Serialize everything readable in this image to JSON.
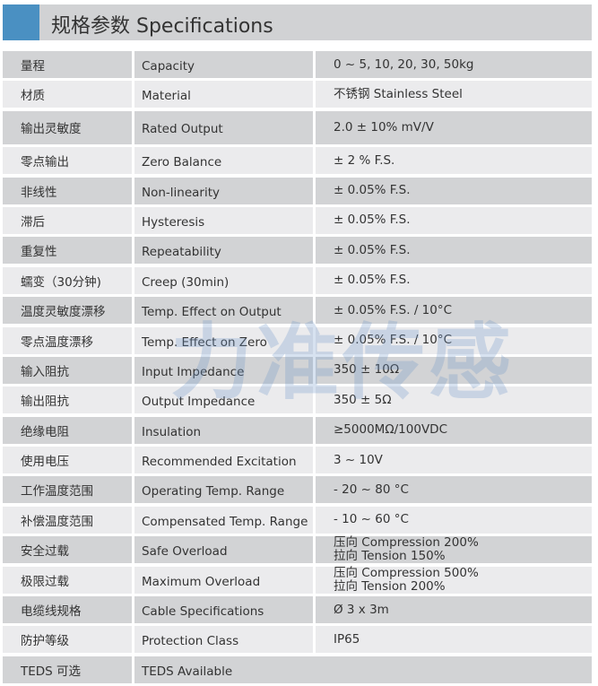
{
  "title": "规格参数 Specifications",
  "accent_color": "#4a90c2",
  "watermark": "力准传感",
  "rows": [
    {
      "cn": "量程",
      "en": "Capacity",
      "value": [
        "0 ~ 5, 10, 20, 30, 50kg"
      ]
    },
    {
      "cn": "材质",
      "en": "Material",
      "value": [
        "不锈钢 Stainless Steel"
      ]
    },
    {
      "cn": "输出灵敏度",
      "en": "Rated Output",
      "value": [
        "2.0 ± 10% mV/V"
      ]
    },
    {
      "cn": "零点输出",
      "en": "Zero Balance",
      "value": [
        "± 2 % F.S."
      ]
    },
    {
      "cn": "非线性",
      "en": "Non-linearity",
      "value": [
        "± 0.05% F.S."
      ]
    },
    {
      "cn": "滞后",
      "en": "Hysteresis",
      "value": [
        "± 0.05% F.S."
      ]
    },
    {
      "cn": "重复性",
      "en": "Repeatability",
      "value": [
        "± 0.05% F.S."
      ]
    },
    {
      "cn": "蠕变（30分钟)",
      "en": "Creep (30min)",
      "value": [
        "± 0.05% F.S."
      ]
    },
    {
      "cn": "温度灵敏度漂移",
      "en": "Temp. Effect on Output",
      "value": [
        "± 0.05% F.S. / 10°C"
      ]
    },
    {
      "cn": "零点温度漂移",
      "en": "Temp. Effect on Zero",
      "value": [
        "± 0.05% F.S. / 10°C"
      ]
    },
    {
      "cn": "输入阻抗",
      "en": "Input Impedance",
      "value": [
        "350 ± 10Ω"
      ]
    },
    {
      "cn": "输出阻抗",
      "en": "Output Impedance",
      "value": [
        "350 ± 5Ω"
      ]
    },
    {
      "cn": "绝缘电阻",
      "en": "Insulation",
      "value": [
        "≥5000MΩ/100VDC"
      ]
    },
    {
      "cn": "使用电压",
      "en": "Recommended Excitation",
      "value": [
        "3 ~ 10V"
      ]
    },
    {
      "cn": "工作温度范围",
      "en": "Operating Temp. Range",
      "value": [
        "- 20 ~ 80 °C"
      ]
    },
    {
      "cn": "补偿温度范围",
      "en": "Compensated Temp. Range",
      "value": [
        "- 10 ~ 60 °C"
      ]
    },
    {
      "cn": "安全过载",
      "en": "Safe Overload",
      "value": [
        "压向 Compression 200%",
        "拉向 Tension 150%"
      ]
    },
    {
      "cn": "极限过载",
      "en": "Maximum Overload",
      "value": [
        "压向 Compression 500%",
        "拉向 Tension 200%"
      ]
    },
    {
      "cn": "电缆线规格",
      "en": "Cable Specifications",
      "value": [
        "Ø 3 x 3m"
      ]
    },
    {
      "cn": "防护等级",
      "en": "Protection Class",
      "value": [
        "IP65"
      ]
    },
    {
      "cn": "TEDS 可选",
      "en": "TEDS Available",
      "value": []
    }
  ]
}
